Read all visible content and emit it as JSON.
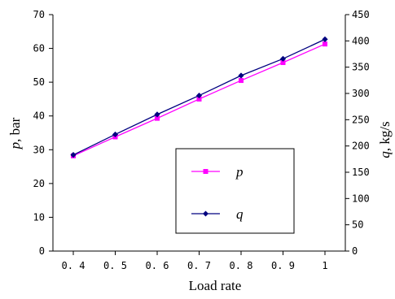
{
  "chart_data": {
    "type": "line",
    "xlabel": "Load rate",
    "ylabel_left": "p, bar",
    "ylabel_left_var": "p",
    "ylabel_left_unit": ", bar",
    "ylabel_right": "q, kg/s",
    "ylabel_right_var": "q",
    "ylabel_right_unit": ", kg/s",
    "x": [
      0.4,
      0.5,
      0.6,
      0.7,
      0.8,
      0.9,
      1.0
    ],
    "x_tick_labels": [
      "0. 4",
      "0. 5",
      "0. 6",
      "0. 7",
      "0. 8",
      "0. 9",
      "1"
    ],
    "y_left_ticks": [
      0,
      10,
      20,
      30,
      40,
      50,
      60,
      70
    ],
    "y_right_ticks": [
      0,
      50,
      100,
      150,
      200,
      250,
      300,
      350,
      400,
      450
    ],
    "ylim_left": [
      0,
      70
    ],
    "ylim_right": [
      0,
      450
    ],
    "grid": false,
    "legend_placement": "bottom-right",
    "series": [
      {
        "name": "p",
        "axis": "left",
        "color": "#ff00ff",
        "marker": "square",
        "values": [
          28.2,
          33.8,
          39.3,
          45.0,
          50.5,
          55.8,
          61.3
        ]
      },
      {
        "name": "q",
        "axis": "right",
        "color": "#000080",
        "marker": "diamond",
        "values": [
          183,
          222,
          260,
          296,
          334,
          366,
          403
        ]
      }
    ]
  }
}
